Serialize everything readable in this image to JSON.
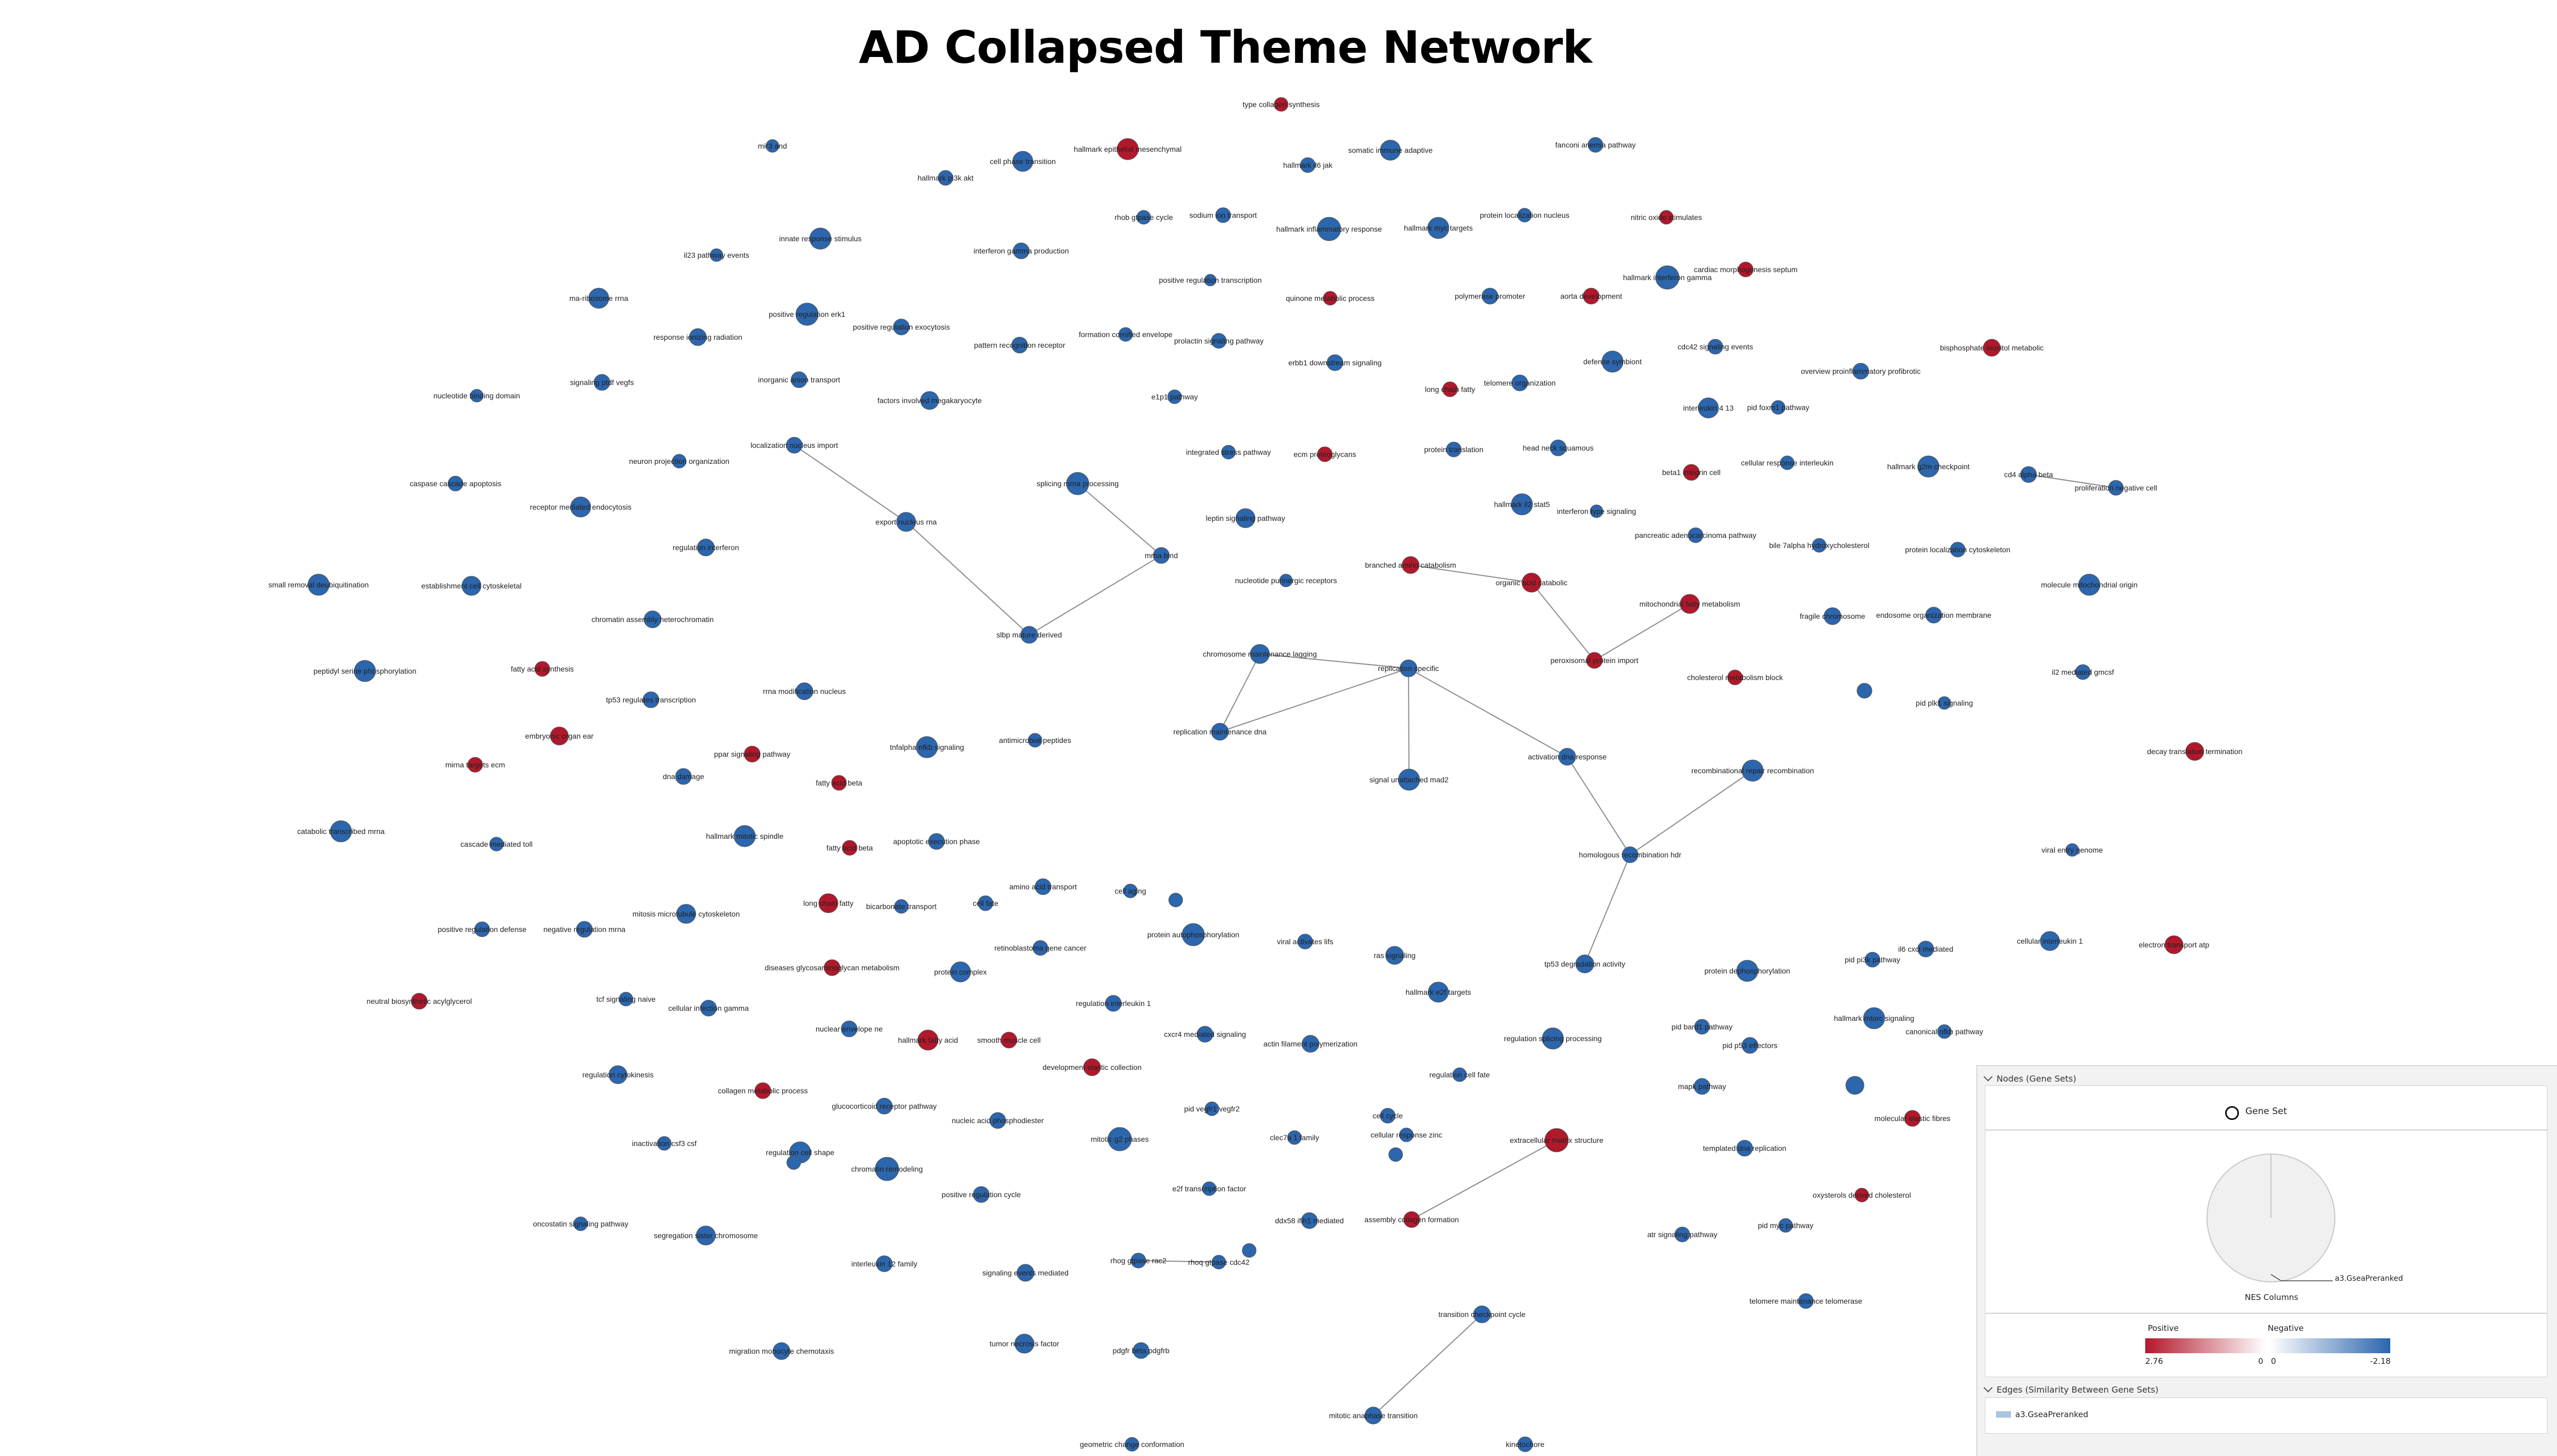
{
  "title": "AD Collapsed Theme Network",
  "colors": {
    "positive": "#b2182b",
    "negative": "#2c66ad",
    "edge": "#8c8c8c",
    "node_outline": "#555555"
  },
  "legend": {
    "nodes_header": "Nodes (Gene Sets)",
    "gene_set_label": "Gene Set",
    "gene_set_icon": "circle-icon",
    "pie_series_label": "a3.GseaPreranked",
    "nes_label": "NES Columns",
    "positive_label": "Positive",
    "negative_label": "Negative",
    "pos_max": "2.76",
    "pos_zero": "0",
    "neg_zero": "0",
    "neg_min": "-2.18",
    "edges_header": "Edges (Similarity Between Gene Sets)",
    "edge_label": "a3.GseaPreranked"
  },
  "nodes": [
    {
      "id": "n001",
      "label": "type collagen synthesis",
      "sign": "pos"
    },
    {
      "id": "n002",
      "label": "hallmark epithelial mesenchymal",
      "sign": "pos"
    },
    {
      "id": "n003",
      "label": "mir3 and",
      "sign": "neg"
    },
    {
      "id": "n004",
      "label": "cell phase transition",
      "sign": "neg"
    },
    {
      "id": "n005",
      "label": "hallmark pi3k akt",
      "sign": "neg"
    },
    {
      "id": "n006",
      "label": "hallmark il6 jak",
      "sign": "neg"
    },
    {
      "id": "n007",
      "label": "somatic immune adaptive",
      "sign": "neg"
    },
    {
      "id": "n008",
      "label": "fanconi anemia pathway",
      "sign": "neg"
    },
    {
      "id": "n009",
      "label": "rhob gtpase cycle",
      "sign": "neg"
    },
    {
      "id": "n010",
      "label": "sodium ion transport",
      "sign": "neg"
    },
    {
      "id": "n011",
      "label": "hallmark inflammatory response",
      "sign": "neg"
    },
    {
      "id": "n012",
      "label": "hallmark myc targets",
      "sign": "neg"
    },
    {
      "id": "n013",
      "label": "protein localization nucleus",
      "sign": "neg"
    },
    {
      "id": "n014",
      "label": "nitric oxide stimulates",
      "sign": "pos"
    },
    {
      "id": "n015",
      "label": "innate response stimulus",
      "sign": "neg"
    },
    {
      "id": "n016",
      "label": "il23 pathway events",
      "sign": "neg"
    },
    {
      "id": "n017",
      "label": "interferon gamma production",
      "sign": "neg"
    },
    {
      "id": "n018",
      "label": "positive regulation transcription",
      "sign": "neg"
    },
    {
      "id": "n019",
      "label": "hallmark interferon gamma",
      "sign": "neg"
    },
    {
      "id": "n020",
      "label": "cardiac morphogenesis septum",
      "sign": "pos"
    },
    {
      "id": "n021",
      "label": "quinone metabolic process",
      "sign": "pos"
    },
    {
      "id": "n022",
      "label": "polymerase promoter",
      "sign": "neg"
    },
    {
      "id": "n023",
      "label": "aorta development",
      "sign": "pos"
    },
    {
      "id": "n024",
      "label": "ma-ribosome rrna",
      "sign": "neg"
    },
    {
      "id": "n025",
      "label": "positive regulation erk1",
      "sign": "neg"
    },
    {
      "id": "n026",
      "label": "positive regulation exocytosis",
      "sign": "neg"
    },
    {
      "id": "n027",
      "label": "response ionizing radiation",
      "sign": "neg"
    },
    {
      "id": "n028",
      "label": "formation cornified envelope",
      "sign": "neg"
    },
    {
      "id": "n029",
      "label": "pattern recognition receptor",
      "sign": "neg"
    },
    {
      "id": "n030",
      "label": "prolactin signaling pathway",
      "sign": "neg"
    },
    {
      "id": "n031",
      "label": "cdc42 signaling events",
      "sign": "neg"
    },
    {
      "id": "n032",
      "label": "bisphosphate inositol metabolic",
      "sign": "pos"
    },
    {
      "id": "n033",
      "label": "erbb1 downstream signaling",
      "sign": "neg"
    },
    {
      "id": "n034",
      "label": "defense symbiont",
      "sign": "neg"
    },
    {
      "id": "n035",
      "label": "overview proinflammatory profibrotic",
      "sign": "neg"
    },
    {
      "id": "n036",
      "label": "signaling ptdf vegfs",
      "sign": "neg"
    },
    {
      "id": "n037",
      "label": "inorganic anion transport",
      "sign": "neg"
    },
    {
      "id": "n038",
      "label": "long chain fatty",
      "sign": "pos"
    },
    {
      "id": "n039",
      "label": "telomere organization",
      "sign": "neg"
    },
    {
      "id": "n040",
      "label": "nucleotide binding domain",
      "sign": "neg"
    },
    {
      "id": "n041",
      "label": "factors involved megakaryocyte",
      "sign": "neg"
    },
    {
      "id": "n042",
      "label": "interleukin 4 13",
      "sign": "neg"
    },
    {
      "id": "n043",
      "label": "pid foxm1 pathway",
      "sign": "neg"
    },
    {
      "id": "n044",
      "label": "e1p1 pathway",
      "sign": "neg"
    },
    {
      "id": "n045",
      "label": "localization nucleus import",
      "sign": "neg"
    },
    {
      "id": "n046",
      "label": "integrated stress pathway",
      "sign": "neg"
    },
    {
      "id": "n047",
      "label": "ecm proteoglycans",
      "sign": "pos"
    },
    {
      "id": "n048",
      "label": "protein translation",
      "sign": "neg"
    },
    {
      "id": "n049",
      "label": "head neck squamous",
      "sign": "neg"
    },
    {
      "id": "n050",
      "label": "neuron projection organization",
      "sign": "neg"
    },
    {
      "id": "n051",
      "label": "beta1 integrin cell",
      "sign": "pos"
    },
    {
      "id": "n052",
      "label": "cellular response interleukin",
      "sign": "neg"
    },
    {
      "id": "n053",
      "label": "hallmark g2m checkpoint",
      "sign": "neg"
    },
    {
      "id": "n054",
      "label": "cd4 alpha beta",
      "sign": "neg"
    },
    {
      "id": "n055",
      "label": "proliferation negative cell",
      "sign": "neg"
    },
    {
      "id": "n056",
      "label": "caspase cascade apoptosis",
      "sign": "neg"
    },
    {
      "id": "n057",
      "label": "splicing mrna processing",
      "sign": "neg"
    },
    {
      "id": "n058",
      "label": "hallmark il2 stat5",
      "sign": "neg"
    },
    {
      "id": "n059",
      "label": "interferon type signaling",
      "sign": "neg"
    },
    {
      "id": "n060",
      "label": "receptor mediated endocytosis",
      "sign": "neg"
    },
    {
      "id": "n061",
      "label": "export nucleus rna",
      "sign": "neg"
    },
    {
      "id": "n062",
      "label": "leptin signaling pathway",
      "sign": "neg"
    },
    {
      "id": "n063",
      "label": "pancreatic adenocarcinoma pathway",
      "sign": "neg"
    },
    {
      "id": "n064",
      "label": "bile 7alpha hydroxycholesterol",
      "sign": "neg"
    },
    {
      "id": "n065",
      "label": "protein localization cytoskeleton",
      "sign": "neg"
    },
    {
      "id": "n066",
      "label": "regulation interferon",
      "sign": "neg"
    },
    {
      "id": "n067",
      "label": "mrna bind",
      "sign": "neg"
    },
    {
      "id": "n068",
      "label": "branched amino catabolism",
      "sign": "pos"
    },
    {
      "id": "n069",
      "label": "organic acid catabolic",
      "sign": "pos"
    },
    {
      "id": "n070",
      "label": "nucleotide purinergic receptors",
      "sign": "neg"
    },
    {
      "id": "n071",
      "label": "small removal deubiquitination",
      "sign": "neg"
    },
    {
      "id": "n072",
      "label": "establishment cell cytoskeletal",
      "sign": "neg"
    },
    {
      "id": "n073",
      "label": "molecule mitochondrial origin",
      "sign": "neg"
    },
    {
      "id": "n074",
      "label": "mitochondrial fatty metabolism",
      "sign": "pos"
    },
    {
      "id": "n075",
      "label": "chromatin assembly heterochromatin",
      "sign": "neg"
    },
    {
      "id": "n076",
      "label": "fragile chromosome",
      "sign": "neg"
    },
    {
      "id": "n077",
      "label": "endosome organization membrane",
      "sign": "neg"
    },
    {
      "id": "n078",
      "label": "slbp mature derived",
      "sign": "neg"
    },
    {
      "id": "n079",
      "label": "chromosome maintenance lagging",
      "sign": "neg"
    },
    {
      "id": "n080",
      "label": "replication specific",
      "sign": "neg"
    },
    {
      "id": "n081",
      "label": "peroxisomal protein import",
      "sign": "pos"
    },
    {
      "id": "n082",
      "label": "peptidyl serine phosphorylation",
      "sign": "neg"
    },
    {
      "id": "n083",
      "label": "fatty acid synthesis",
      "sign": "pos"
    },
    {
      "id": "n084",
      "label": "cholesterol metabolism block",
      "sign": "pos"
    },
    {
      "id": "n085",
      "label": "il2 mediated gmcsf",
      "sign": "neg"
    },
    {
      "id": "n086",
      "label": "rrna modification nucleus",
      "sign": "neg"
    },
    {
      "id": "n087",
      "label": "tp53 regulates transcription",
      "sign": "neg"
    },
    {
      "id": "n088",
      "label": "pid plk1 signaling",
      "sign": "neg"
    },
    {
      "id": "n089",
      "label": "unlabeled-small-1",
      "sign": "neg",
      "hide": true
    },
    {
      "id": "n090",
      "label": "replication maintenance dna",
      "sign": "neg"
    },
    {
      "id": "n091",
      "label": "embryonic organ ear",
      "sign": "pos"
    },
    {
      "id": "n092",
      "label": "antimicrobial peptides",
      "sign": "neg"
    },
    {
      "id": "n093",
      "label": "tnfalpha nfkb signaling",
      "sign": "neg"
    },
    {
      "id": "n094",
      "label": "ppar signaling pathway",
      "sign": "pos"
    },
    {
      "id": "n095",
      "label": "mirna targets ecm",
      "sign": "pos"
    },
    {
      "id": "n096",
      "label": "dna damage",
      "sign": "neg"
    },
    {
      "id": "n097",
      "label": "activation dna response",
      "sign": "neg"
    },
    {
      "id": "n098",
      "label": "decay translation termination",
      "sign": "pos"
    },
    {
      "id": "n099",
      "label": "fatty acid beta",
      "sign": "pos"
    },
    {
      "id": "n100",
      "label": "signal unattached mad2",
      "sign": "neg"
    },
    {
      "id": "n101",
      "label": "recombinational repair recombination",
      "sign": "neg"
    },
    {
      "id": "n102",
      "label": "catabolic transcribed mrna",
      "sign": "neg"
    },
    {
      "id": "n103",
      "label": "hallmark mitotic spindle",
      "sign": "neg"
    },
    {
      "id": "n104",
      "label": "cascade mediated toll",
      "sign": "neg"
    },
    {
      "id": "n105",
      "label": "fatty acid beta",
      "sign": "pos"
    },
    {
      "id": "n106",
      "label": "apoptotic execution phase",
      "sign": "neg"
    },
    {
      "id": "n107",
      "label": "homologous recombination hdr",
      "sign": "neg"
    },
    {
      "id": "n108",
      "label": "viral entry genome",
      "sign": "neg"
    },
    {
      "id": "n109",
      "label": "amino acid transport",
      "sign": "neg"
    },
    {
      "id": "n110",
      "label": "long chain fatty",
      "sign": "pos"
    },
    {
      "id": "n111",
      "label": "bicarbonate transport",
      "sign": "neg"
    },
    {
      "id": "n112",
      "label": "cell fate",
      "sign": "neg"
    },
    {
      "id": "n113",
      "label": "cell aging",
      "sign": "neg"
    },
    {
      "id": "n114",
      "label": "mitosis microtubule cytoskeleton",
      "sign": "neg"
    },
    {
      "id": "n115",
      "label": "positive regulation defense",
      "sign": "neg"
    },
    {
      "id": "n116",
      "label": "negative regulation mrna",
      "sign": "neg"
    },
    {
      "id": "n117",
      "label": "protein autophosphorylation",
      "sign": "neg"
    },
    {
      "id": "n118",
      "label": "viral activates lifs",
      "sign": "neg"
    },
    {
      "id": "n119",
      "label": "retinoblastoma gene cancer",
      "sign": "neg"
    },
    {
      "id": "n120",
      "label": "ras signaling",
      "sign": "neg"
    },
    {
      "id": "n121",
      "label": "pid pi3k pathway",
      "sign": "neg"
    },
    {
      "id": "n122",
      "label": "il6 cxcl mediated",
      "sign": "neg"
    },
    {
      "id": "n123",
      "label": "cellular interleukin 1",
      "sign": "neg"
    },
    {
      "id": "n124",
      "label": "electron transport atp",
      "sign": "pos"
    },
    {
      "id": "n125",
      "label": "diseases glycosaminoglycan metabolism",
      "sign": "pos"
    },
    {
      "id": "n126",
      "label": "protein complex",
      "sign": "neg"
    },
    {
      "id": "n127",
      "label": "tp53 degradation activity",
      "sign": "neg"
    },
    {
      "id": "n128",
      "label": "protein dephosphorylation",
      "sign": "neg"
    },
    {
      "id": "n129",
      "label": "neutral biosynthetic acylglycerol",
      "sign": "pos"
    },
    {
      "id": "n130",
      "label": "tcf signaling naive",
      "sign": "neg"
    },
    {
      "id": "n131",
      "label": "cellular infection gamma",
      "sign": "neg"
    },
    {
      "id": "n132",
      "label": "regulation interleukin 1",
      "sign": "neg"
    },
    {
      "id": "n133",
      "label": "hallmark e2f targets",
      "sign": "neg"
    },
    {
      "id": "n134",
      "label": "hallmark mtorc signaling",
      "sign": "neg"
    },
    {
      "id": "n135",
      "label": "canonical nfkb pathway",
      "sign": "neg"
    },
    {
      "id": "n136",
      "label": "nuclear envelope ne",
      "sign": "neg"
    },
    {
      "id": "n137",
      "label": "hallmark fatty acid",
      "sign": "pos"
    },
    {
      "id": "n138",
      "label": "smooth muscle cell",
      "sign": "pos"
    },
    {
      "id": "n139",
      "label": "cxcr4 mediated signaling",
      "sign": "neg"
    },
    {
      "id": "n140",
      "label": "actin filament polymerization",
      "sign": "neg"
    },
    {
      "id": "n141",
      "label": "regulation splicing processing",
      "sign": "neg"
    },
    {
      "id": "n142",
      "label": "pid bard1 pathway",
      "sign": "neg"
    },
    {
      "id": "n143",
      "label": "pid p53 effectors",
      "sign": "neg"
    },
    {
      "id": "n144",
      "label": "development elastic collection",
      "sign": "pos"
    },
    {
      "id": "n145",
      "label": "regulation cell fate",
      "sign": "neg"
    },
    {
      "id": "n146",
      "label": "regulation cytokinesis",
      "sign": "neg"
    },
    {
      "id": "n147",
      "label": "collagen metabolic process",
      "sign": "pos"
    },
    {
      "id": "n148",
      "label": "glucocorticoid receptor pathway",
      "sign": "neg"
    },
    {
      "id": "n149",
      "label": "pid vegfr1 vegfr2",
      "sign": "neg"
    },
    {
      "id": "n150",
      "label": "mapk pathway",
      "sign": "neg"
    },
    {
      "id": "n151",
      "label": "unlabeled-small-2",
      "sign": "neg",
      "hide": true
    },
    {
      "id": "n152",
      "label": "nucleic acid phosphodiester",
      "sign": "neg"
    },
    {
      "id": "n153",
      "label": "cell cycle",
      "sign": "neg"
    },
    {
      "id": "n154",
      "label": "molecular elastic fibres",
      "sign": "pos"
    },
    {
      "id": "n155",
      "label": "inactivation csf3 csf",
      "sign": "neg"
    },
    {
      "id": "n156",
      "label": "regulation cell shape",
      "sign": "neg"
    },
    {
      "id": "n157",
      "label": "mitotic g2 phases",
      "sign": "neg"
    },
    {
      "id": "n158",
      "label": "clec7a 1 family",
      "sign": "neg"
    },
    {
      "id": "n159",
      "label": "cellular response zinc",
      "sign": "neg"
    },
    {
      "id": "n160",
      "label": "extracellular matrix structure",
      "sign": "pos"
    },
    {
      "id": "n161",
      "label": "templated dna replication",
      "sign": "neg"
    },
    {
      "id": "n162",
      "label": "chromatin remodeling",
      "sign": "neg"
    },
    {
      "id": "n163",
      "label": "e2f transcription factor",
      "sign": "neg"
    },
    {
      "id": "n164",
      "label": "positive regulation cycle",
      "sign": "neg"
    },
    {
      "id": "n165",
      "label": "oxysterols derived cholesterol",
      "sign": "pos"
    },
    {
      "id": "n166",
      "label": "ddx58 ifih1 mediated",
      "sign": "neg"
    },
    {
      "id": "n167",
      "label": "assembly collagen formation",
      "sign": "pos"
    },
    {
      "id": "n168",
      "label": "oncostatin signaling pathway",
      "sign": "neg"
    },
    {
      "id": "n169",
      "label": "segregation sister chromosome",
      "sign": "neg"
    },
    {
      "id": "n170",
      "label": "atr signaling pathway",
      "sign": "neg"
    },
    {
      "id": "n171",
      "label": "pid myc pathway",
      "sign": "neg"
    },
    {
      "id": "n172",
      "label": "interleukin 12 family",
      "sign": "neg"
    },
    {
      "id": "n173",
      "label": "signaling events mediated",
      "sign": "neg"
    },
    {
      "id": "n174",
      "label": "rhog gtpase rac2",
      "sign": "neg"
    },
    {
      "id": "n175",
      "label": "rhoq gtpase cdc42",
      "sign": "neg"
    },
    {
      "id": "n176",
      "label": "telomere maintenance telomerase",
      "sign": "neg"
    },
    {
      "id": "n177",
      "label": "migration monocyte chemotaxis",
      "sign": "neg"
    },
    {
      "id": "n178",
      "label": "tumor necrosis factor",
      "sign": "neg"
    },
    {
      "id": "n179",
      "label": "pdgfr beta pdgfrb",
      "sign": "neg"
    },
    {
      "id": "n180",
      "label": "transition checkpoint cycle",
      "sign": "neg"
    },
    {
      "id": "n181",
      "label": "mitotic anaphase transition",
      "sign": "neg"
    },
    {
      "id": "n182",
      "label": "geometric change conformation",
      "sign": "neg"
    },
    {
      "id": "n183",
      "label": "kinetochore",
      "sign": "neg"
    },
    {
      "id": "n184",
      "label": "unlabeled-small-3",
      "sign": "neg",
      "hide": true
    },
    {
      "id": "n185",
      "label": "unlabeled-small-4",
      "sign": "neg",
      "hide": true
    },
    {
      "id": "n186",
      "label": "unlabeled-small-5",
      "sign": "neg",
      "hide": true
    },
    {
      "id": "n187",
      "label": "unlabeled-small-6",
      "sign": "neg",
      "hide": true
    }
  ],
  "edges": [
    [
      "n045",
      "n061"
    ],
    [
      "n061",
      "n078"
    ],
    [
      "n078",
      "n067"
    ],
    [
      "n057",
      "n067"
    ],
    [
      "n079",
      "n090"
    ],
    [
      "n079",
      "n080"
    ],
    [
      "n090",
      "n080"
    ],
    [
      "n080",
      "n100"
    ],
    [
      "n080",
      "n097"
    ],
    [
      "n097",
      "n107"
    ],
    [
      "n107",
      "n101"
    ],
    [
      "n107",
      "n127"
    ],
    [
      "n068",
      "n069"
    ],
    [
      "n069",
      "n081"
    ],
    [
      "n081",
      "n074"
    ],
    [
      "n054",
      "n055"
    ],
    [
      "n174",
      "n175"
    ],
    [
      "n160",
      "n167"
    ],
    [
      "n180",
      "n181"
    ]
  ]
}
